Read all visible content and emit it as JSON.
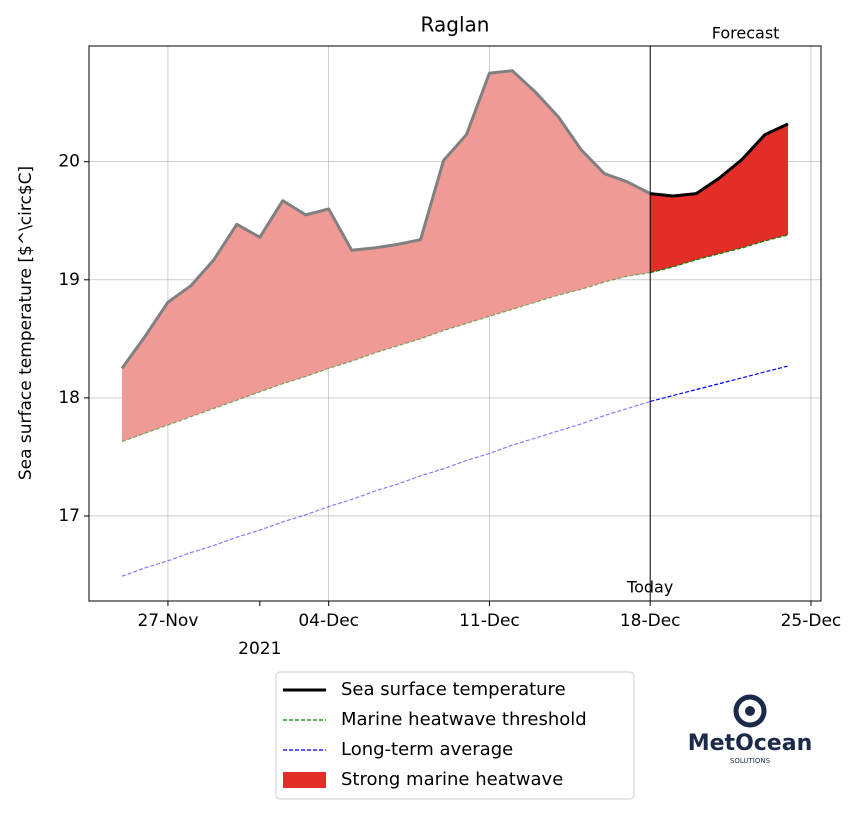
{
  "chart_data": {
    "type": "line",
    "title": "Raglan",
    "y_label": "Sea surface temperature [$^\\circ$C]",
    "x": [
      "2021-11-25",
      "2021-11-26",
      "2021-11-27",
      "2021-11-28",
      "2021-11-29",
      "2021-11-30",
      "2021-12-01",
      "2021-12-02",
      "2021-12-03",
      "2021-12-04",
      "2021-12-05",
      "2021-12-06",
      "2021-12-07",
      "2021-12-08",
      "2021-12-09",
      "2021-12-10",
      "2021-12-11",
      "2021-12-12",
      "2021-12-13",
      "2021-12-14",
      "2021-12-15",
      "2021-12-16",
      "2021-12-17",
      "2021-12-18",
      "2021-12-19",
      "2021-12-20",
      "2021-12-21",
      "2021-12-22",
      "2021-12-23",
      "2021-12-24"
    ],
    "series": [
      {
        "name": "Sea surface temperature",
        "color": "#000000",
        "past_color": "#808080",
        "values": [
          18.25,
          18.52,
          18.81,
          18.95,
          19.17,
          19.47,
          19.36,
          19.67,
          19.55,
          19.6,
          19.25,
          19.27,
          19.3,
          19.34,
          20.01,
          20.23,
          20.75,
          20.77,
          20.59,
          20.38,
          20.1,
          19.9,
          19.83,
          19.73,
          19.71,
          19.73,
          19.86,
          20.02,
          20.23,
          20.32
        ]
      },
      {
        "name": "Marine heatwave threshold",
        "color": "#008000",
        "dashed": true,
        "values": [
          17.63,
          17.7,
          17.77,
          17.84,
          17.91,
          17.98,
          18.05,
          18.12,
          18.18,
          18.25,
          18.31,
          18.38,
          18.44,
          18.5,
          18.57,
          18.63,
          18.69,
          18.75,
          18.81,
          18.87,
          18.92,
          18.98,
          19.03,
          19.06,
          19.11,
          19.17,
          19.22,
          19.27,
          19.33,
          19.38
        ]
      },
      {
        "name": "Long-term average",
        "color": "#0000ff",
        "dashed": true,
        "values": [
          16.49,
          16.56,
          16.62,
          16.69,
          16.75,
          16.82,
          16.88,
          16.95,
          17.01,
          17.08,
          17.14,
          17.21,
          17.27,
          17.34,
          17.4,
          17.47,
          17.53,
          17.6,
          17.66,
          17.72,
          17.78,
          17.85,
          17.91,
          17.97,
          18.02,
          18.07,
          18.12,
          18.17,
          18.22,
          18.27
        ]
      }
    ],
    "fill": {
      "name": "Strong marine heatwave",
      "color": "#e32e28",
      "past_color": "#f09a96"
    },
    "today": "2021-12-18",
    "today_label": "Today",
    "forecast_label": "Forecast",
    "xlim": [
      "2021-11-23T13:30",
      "2021-12-25T10:30"
    ],
    "xticks": [
      {
        "value": "2021-11-27",
        "label": "27-Nov"
      },
      {
        "value": "2021-12-04",
        "label": "04-Dec"
      },
      {
        "value": "2021-12-11",
        "label": "11-Dec"
      },
      {
        "value": "2021-12-18",
        "label": "18-Dec"
      },
      {
        "value": "2021-12-25",
        "label": "25-Dec"
      }
    ],
    "xticks_minor": [
      {
        "value": "2021-12-01",
        "label": "2021"
      }
    ],
    "ylim": [
      16.28,
      20.98
    ],
    "yticks": [
      17,
      18,
      19,
      20
    ],
    "grid": true,
    "legend": "below",
    "logo": {
      "name": "MetOcean",
      "sub": "SOLUTIONS"
    }
  }
}
